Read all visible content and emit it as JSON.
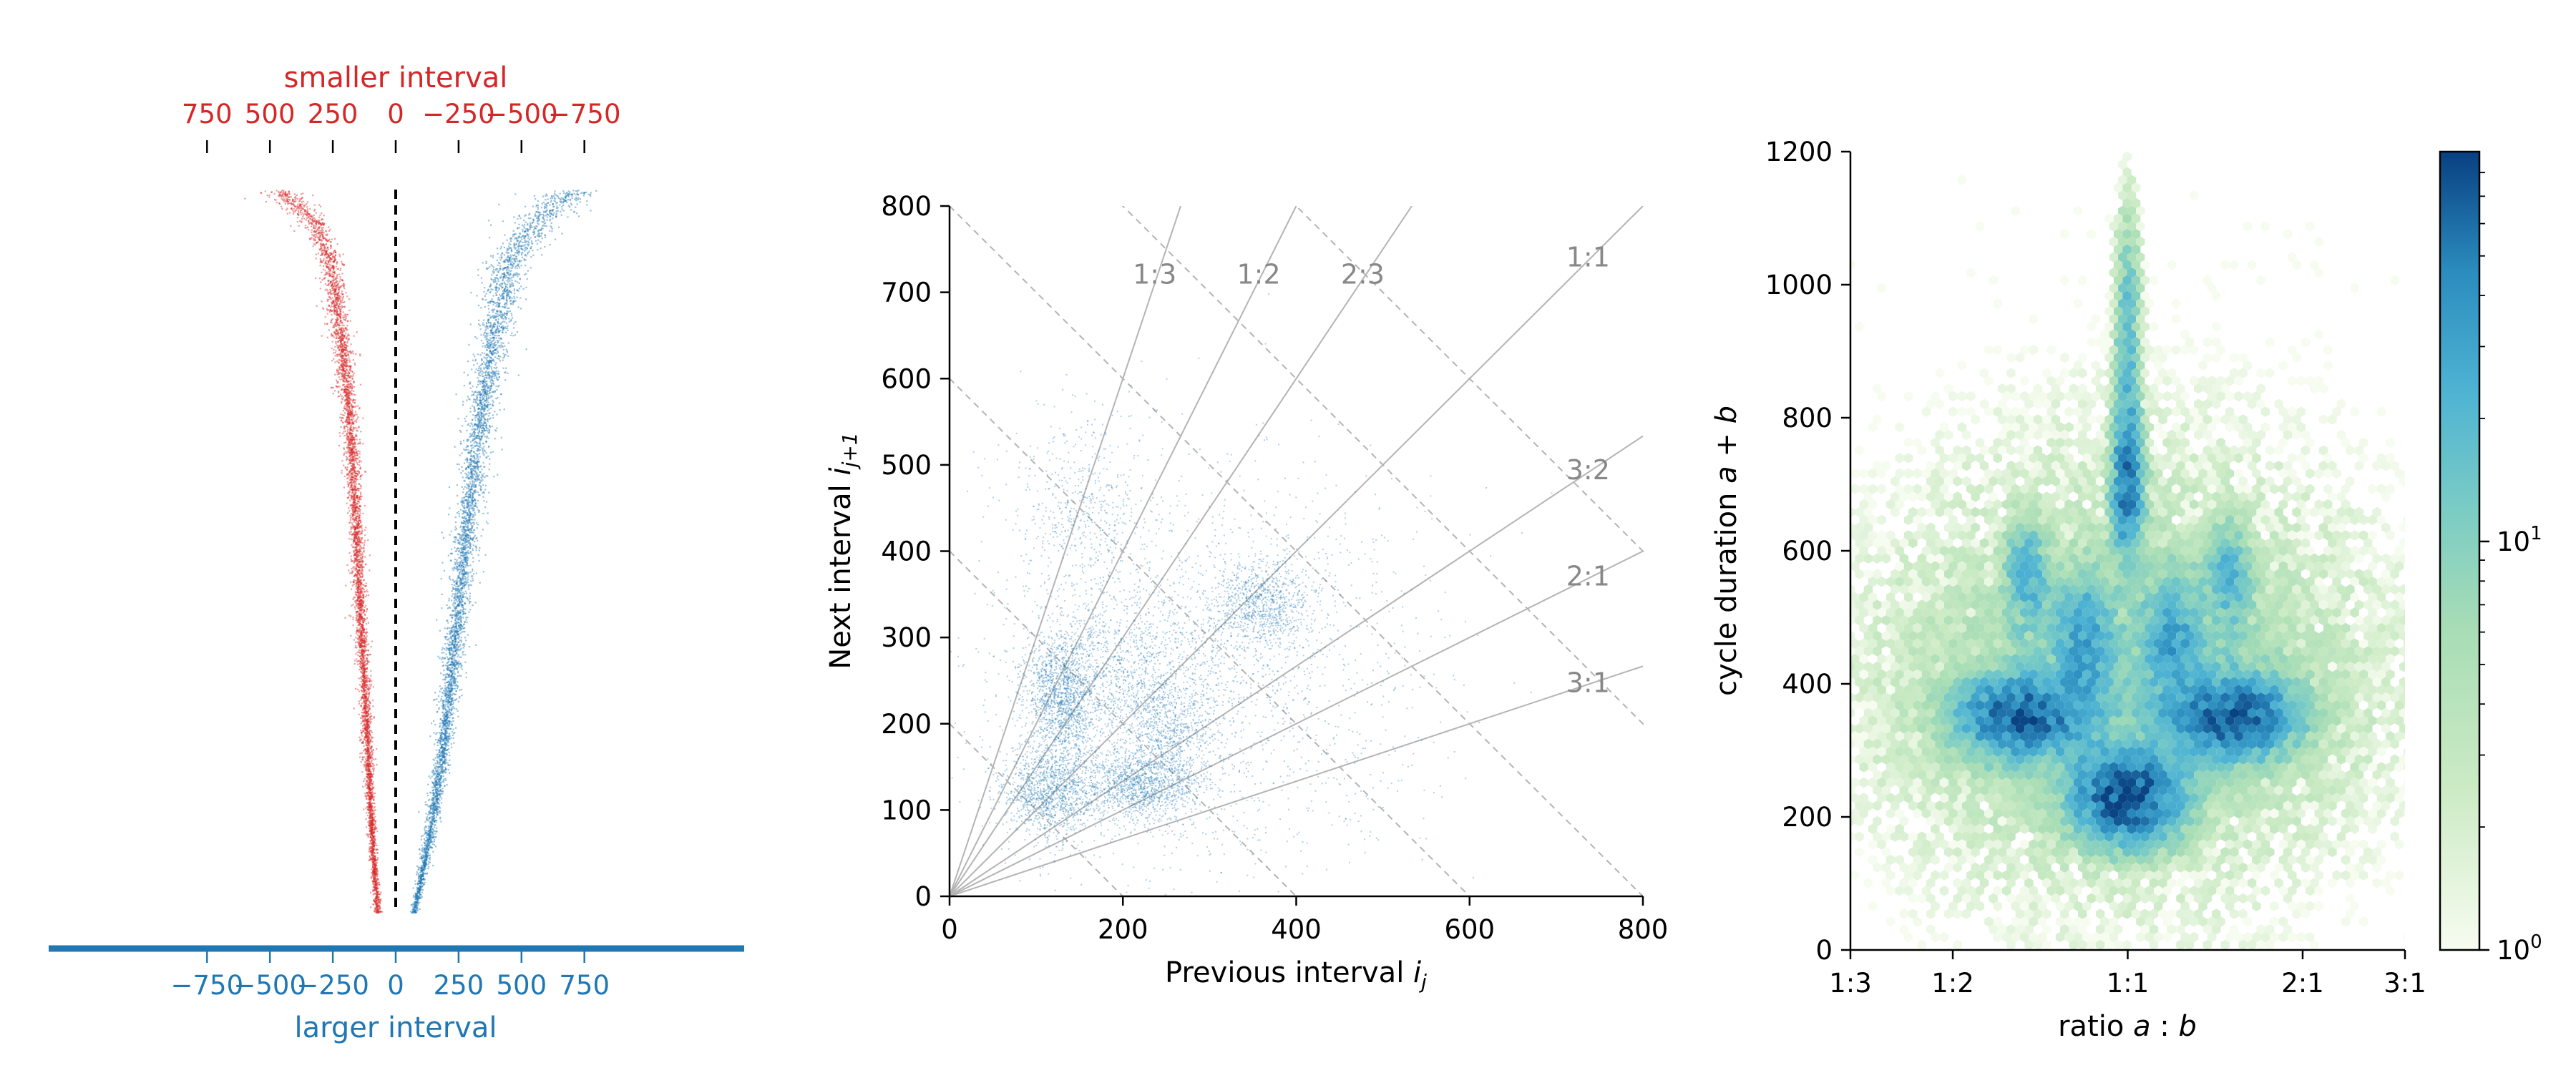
{
  "colors": {
    "red": "#d62728",
    "blue": "#1f77b4",
    "axis": "#000000",
    "ratio_label": "#888888",
    "grid_line": "#b4b4b4",
    "cmap_low": "#f7fcf0",
    "cmap_mid": "#7bccc4",
    "cmap_high": "#084081"
  },
  "chart_data": [
    {
      "type": "scatter",
      "panel": "interval-asymmetry",
      "top_axis": {
        "label": "smaller interval",
        "ticks": [
          750,
          500,
          250,
          0,
          -250,
          -500,
          -750
        ],
        "tick_labels": [
          "750",
          "500",
          "250",
          "0",
          "−250",
          "−500",
          "−750"
        ]
      },
      "bottom_axis": {
        "label": "larger interval",
        "ticks": [
          -750,
          -500,
          -250,
          0,
          250,
          500,
          750
        ],
        "tick_labels": [
          "−750",
          "−500",
          "−250",
          "0",
          "250",
          "500",
          "750"
        ]
      },
      "xlim": [
        -810,
        810
      ],
      "series": [
        {
          "side": "smaller",
          "color": "#d62728",
          "profile_fraction": [
            0.0,
            0.04,
            0.1,
            0.2,
            0.3,
            0.4,
            0.5,
            0.6,
            0.7,
            0.8,
            0.9,
            0.95,
            1.0
          ],
          "profile_value": [
            -470,
            -330,
            -260,
            -220,
            -190,
            -170,
            -155,
            -140,
            -125,
            -110,
            -95,
            -85,
            -75
          ]
        },
        {
          "side": "larger",
          "color": "#1f77b4",
          "profile_fraction": [
            0.0,
            0.04,
            0.1,
            0.2,
            0.3,
            0.4,
            0.5,
            0.6,
            0.7,
            0.8,
            0.9,
            0.95,
            1.0
          ],
          "profile_value": [
            700,
            560,
            450,
            390,
            340,
            300,
            270,
            240,
            210,
            175,
            130,
            100,
            70
          ]
        }
      ],
      "zero_line": true
    },
    {
      "type": "scatter",
      "panel": "return-map",
      "xlabel": "Previous interval ",
      "xlabel_sub": "j",
      "xlabel_var": "i",
      "ylabel_var": "i",
      "ylabel": "Next interval ",
      "ylabel_sub": "j+1",
      "xlim": [
        0,
        800
      ],
      "ylim": [
        0,
        800
      ],
      "xticks": [
        0,
        200,
        400,
        600,
        800
      ],
      "yticks": [
        0,
        100,
        200,
        300,
        400,
        500,
        600,
        700,
        800
      ],
      "ratio_lines": [
        {
          "label": "1:3",
          "slope": 3
        },
        {
          "label": "1:2",
          "slope": 2
        },
        {
          "label": "2:3",
          "slope": 1.5
        },
        {
          "label": "1:1",
          "slope": 1
        },
        {
          "label": "3:2",
          "slope": 0.6667
        },
        {
          "label": "2:1",
          "slope": 0.5
        },
        {
          "label": "3:1",
          "slope": 0.3333
        }
      ],
      "cycle_lines": [
        200,
        400,
        600,
        800,
        1000,
        1200
      ],
      "clusters": [
        {
          "x": 130,
          "y": 230,
          "sx": 22,
          "sy": 35,
          "weight": 0.16
        },
        {
          "x": 115,
          "y": 120,
          "sx": 28,
          "sy": 28,
          "weight": 0.14
        },
        {
          "x": 220,
          "y": 130,
          "sx": 35,
          "sy": 20,
          "weight": 0.14
        },
        {
          "x": 250,
          "y": 195,
          "sx": 30,
          "sy": 30,
          "weight": 0.08
        },
        {
          "x": 360,
          "y": 340,
          "sx": 30,
          "sy": 25,
          "weight": 0.1
        },
        {
          "x": 200,
          "y": 270,
          "sx": 60,
          "sy": 40,
          "weight": 0.1
        },
        {
          "x": 150,
          "y": 450,
          "sx": 40,
          "sy": 60,
          "weight": 0.06
        },
        {
          "x": 300,
          "y": 250,
          "sx": 120,
          "sy": 120,
          "weight": 0.22
        }
      ],
      "color": "#1f77b4"
    },
    {
      "type": "heatmap",
      "panel": "hexbin",
      "xlabel_pre": "ratio ",
      "xlabel_a": "a",
      "xlabel_colon": " : ",
      "xlabel_b": "b",
      "ylabel_pre": "cycle duration ",
      "ylabel_a": "a",
      "ylabel_plus": " + ",
      "ylabel_b": "b",
      "xticks": [
        -1.0986,
        -0.6931,
        0,
        0.6931,
        1.0986
      ],
      "xtick_labels": [
        "1:3",
        "1:2",
        "1:1",
        "2:1",
        "3:1"
      ],
      "xlim": [
        -1.0986,
        1.0986
      ],
      "ylim": [
        0,
        1200
      ],
      "yticks": [
        0,
        200,
        400,
        600,
        800,
        1000,
        1200
      ],
      "log_color_scale": true,
      "colorbar_label_base": "10",
      "colorbar_ticks": [
        {
          "value": 1,
          "exp": "0"
        },
        {
          "value": 10,
          "exp": "1"
        }
      ],
      "colorbar_max": 90,
      "hot_spots": [
        {
          "x": 0,
          "y": 230,
          "sx": 0.12,
          "sy": 40,
          "peak": 80
        },
        {
          "x": -0.42,
          "y": 350,
          "sx": 0.14,
          "sy": 35,
          "peak": 65
        },
        {
          "x": 0.42,
          "y": 350,
          "sx": 0.14,
          "sy": 35,
          "peak": 65
        },
        {
          "x": 0,
          "y": 700,
          "sx": 0.035,
          "sy": 60,
          "peak": 55
        },
        {
          "x": 0,
          "y": 900,
          "sx": 0.03,
          "sy": 120,
          "peak": 18
        },
        {
          "x": -0.18,
          "y": 460,
          "sx": 0.07,
          "sy": 60,
          "peak": 25
        },
        {
          "x": 0.18,
          "y": 460,
          "sx": 0.07,
          "sy": 60,
          "peak": 25
        },
        {
          "x": -0.4,
          "y": 560,
          "sx": 0.05,
          "sy": 50,
          "peak": 20
        },
        {
          "x": 0.4,
          "y": 560,
          "sx": 0.05,
          "sy": 50,
          "peak": 20
        },
        {
          "x": 0,
          "y": 400,
          "sx": 0.5,
          "sy": 120,
          "peak": 6
        }
      ]
    }
  ]
}
